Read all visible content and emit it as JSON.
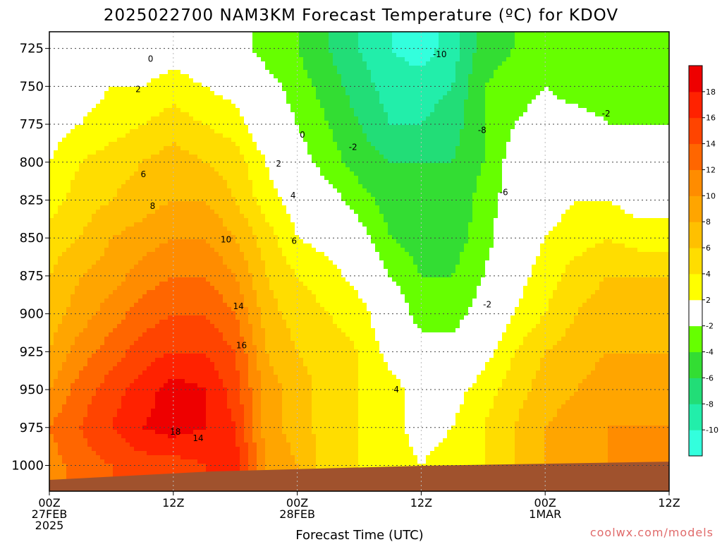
{
  "chart_data": {
    "type": "heatmap",
    "title": "2025022700 NAM3KM Forecast Temperature (ºC) for KDOV",
    "xlabel": "Forecast Time (UTC)",
    "credit": "coolwx.com/models",
    "x_ticks": [
      {
        "hour": 0,
        "line1": "00Z",
        "line2": "27FEB",
        "line3": "2025"
      },
      {
        "hour": 12,
        "line1": "12Z",
        "line2": "",
        "line3": ""
      },
      {
        "hour": 24,
        "line1": "00Z",
        "line2": "28FEB",
        "line3": ""
      },
      {
        "hour": 36,
        "line1": "12Z",
        "line2": "",
        "line3": ""
      },
      {
        "hour": 48,
        "line1": "00Z",
        "line2": "1MAR",
        "line3": ""
      },
      {
        "hour": 60,
        "line1": "12Z",
        "line2": "",
        "line3": ""
      }
    ],
    "xlim": [
      0,
      60
    ],
    "ylabel": "",
    "y_ticks": [
      725,
      750,
      775,
      800,
      825,
      850,
      875,
      900,
      925,
      950,
      975,
      1000
    ],
    "ylim": [
      1017,
      714
    ],
    "colorbar": {
      "levels": [
        -10,
        -8,
        -6,
        -4,
        -2,
        2,
        4,
        6,
        8,
        10,
        12,
        14,
        16,
        18
      ],
      "colors": [
        "#33ffdd",
        "#22eeaa",
        "#22dd77",
        "#33dd33",
        "#66ff00",
        "#ffffff",
        "#ffff00",
        "#ffdd00",
        "#ffc000",
        "#ffa500",
        "#ff8c00",
        "#ff6600",
        "#ff4400",
        "#ff2200",
        "#ee0000"
      ]
    },
    "hours": [
      0,
      3,
      6,
      9,
      12,
      15,
      18,
      21,
      24,
      27,
      30,
      33,
      36,
      39,
      42,
      45,
      48,
      51,
      54,
      57,
      60
    ],
    "levels_hpa": [
      1000,
      975,
      950,
      925,
      900,
      875,
      850,
      825,
      800,
      775,
      750,
      725
    ],
    "temperature": [
      [
        11,
        13,
        14,
        15,
        15,
        16,
        17,
        10,
        8,
        5,
        4,
        3,
        2,
        3,
        4,
        6,
        8,
        9,
        10,
        10,
        10
      ],
      [
        12,
        14,
        16,
        18,
        19,
        18,
        16,
        9,
        7,
        5,
        4,
        3,
        1,
        2,
        4,
        6,
        8,
        9,
        10,
        10,
        10
      ],
      [
        10,
        13,
        15,
        17,
        19,
        18,
        15,
        9,
        7,
        5,
        4,
        3,
        1,
        1,
        3,
        5,
        7,
        8,
        9,
        9,
        9
      ],
      [
        8,
        11,
        13,
        15,
        16,
        16,
        14,
        8,
        6,
        5,
        4,
        1,
        -1,
        -1,
        1,
        4,
        6,
        7,
        8,
        8,
        8
      ],
      [
        7,
        9,
        11,
        13,
        14,
        14,
        12,
        7,
        5,
        4,
        3,
        0,
        -3,
        -3,
        -1,
        2,
        4,
        6,
        7,
        7,
        7
      ],
      [
        6,
        8,
        9,
        11,
        12,
        12,
        10,
        6,
        4,
        3,
        1,
        -2,
        -4,
        -4,
        -2,
        1,
        3,
        5,
        6,
        6,
        6
      ],
      [
        5,
        6,
        8,
        9,
        10,
        10,
        8,
        5,
        2,
        1,
        -1,
        -4,
        -5,
        -5,
        -3,
        0,
        2,
        3,
        4,
        3,
        3
      ],
      [
        3,
        5,
        6,
        7,
        8,
        8,
        6,
        3,
        1,
        -1,
        -3,
        -5,
        -6,
        -6,
        -3,
        -1,
        1,
        2,
        2,
        1,
        1
      ],
      [
        2,
        4,
        5,
        6,
        7,
        6,
        5,
        2,
        -1,
        -3,
        -5,
        -6,
        -6,
        -6,
        -4,
        -1,
        0,
        1,
        0,
        0,
        -1
      ],
      [
        1,
        2,
        3,
        4,
        5,
        4,
        3,
        0,
        -2,
        -4,
        -6,
        -8,
        -8,
        -7,
        -4,
        -2,
        -1,
        -1,
        -2,
        -2,
        -2
      ],
      [
        0,
        1,
        2,
        2,
        3,
        2,
        1,
        -1,
        -3,
        -5,
        -7,
        -9,
        -9,
        -8,
        -4,
        -3,
        -2,
        -3,
        -3,
        -3,
        -3
      ],
      [
        -1,
        -1,
        0,
        0,
        1,
        0,
        -1,
        -3,
        -4,
        -6,
        -8,
        -10,
        -11,
        -9,
        -5,
        -4,
        -3,
        -4,
        -4,
        -4,
        -4
      ]
    ],
    "contour_labels": [
      {
        "text": "0",
        "hour": 9.8,
        "p": 732
      },
      {
        "text": "2",
        "hour": 8.6,
        "p": 752
      },
      {
        "text": "6",
        "hour": 9.1,
        "p": 808
      },
      {
        "text": "8",
        "hour": 10.0,
        "p": 829
      },
      {
        "text": "10",
        "hour": 17.1,
        "p": 851
      },
      {
        "text": "14",
        "hour": 18.3,
        "p": 895
      },
      {
        "text": "16",
        "hour": 18.6,
        "p": 921
      },
      {
        "text": "18",
        "hour": 12.2,
        "p": 978
      },
      {
        "text": "14",
        "hour": 14.4,
        "p": 982
      },
      {
        "text": "2",
        "hour": 22.2,
        "p": 801
      },
      {
        "text": "0",
        "hour": 24.5,
        "p": 782
      },
      {
        "text": "4",
        "hour": 23.6,
        "p": 822
      },
      {
        "text": "6",
        "hour": 23.7,
        "p": 852
      },
      {
        "text": "4",
        "hour": 33.6,
        "p": 950
      },
      {
        "text": "-2",
        "hour": 29.4,
        "p": 790
      },
      {
        "text": "-10",
        "hour": 37.8,
        "p": 729
      },
      {
        "text": "-8",
        "hour": 41.9,
        "p": 779
      },
      {
        "text": "-6",
        "hour": 44.0,
        "p": 820
      },
      {
        "text": "-2",
        "hour": 42.4,
        "p": 894
      },
      {
        "text": "-2",
        "hour": 53.9,
        "p": 768
      }
    ]
  }
}
